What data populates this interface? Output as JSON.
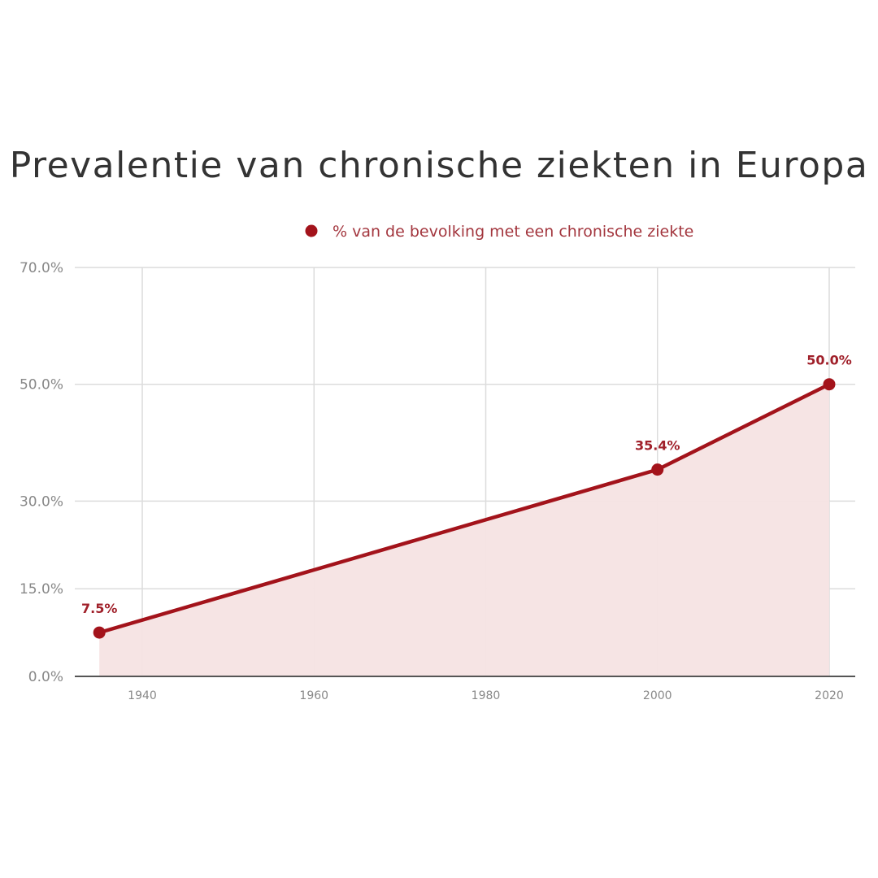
{
  "chart_data": {
    "type": "area",
    "title": "Prevalentie van chronische ziekten in Europa",
    "legend_position": "top-center",
    "grid": true,
    "series": [
      {
        "name": "% van de bevolking met een chronische ziekte",
        "x": [
          1935,
          2000,
          2020
        ],
        "values": [
          7.5,
          35.4,
          50.0
        ],
        "labels": [
          "7.5%",
          "35.4%",
          "50.0%"
        ]
      }
    ],
    "x_ticks": [
      1940,
      1960,
      1980,
      2000,
      2020
    ],
    "y_ticks": [
      0,
      15,
      30,
      50,
      70
    ],
    "y_tick_labels": [
      "0.0%",
      "15.0%",
      "30.0%",
      "50.0%",
      "70.0%"
    ],
    "xlim": [
      1930,
      2023
    ],
    "ylim": [
      0,
      70
    ],
    "colors": {
      "line": "#a3131b",
      "fill": "#f5e3e3"
    }
  }
}
